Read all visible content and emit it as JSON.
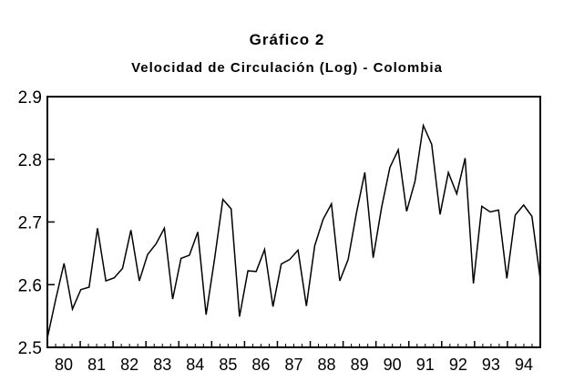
{
  "chart_data": {
    "type": "line",
    "title": "Gráfico 2",
    "subtitle": "Velocidad de Circulación (Log) - Colombia",
    "xlabel": "",
    "ylabel": "",
    "ylim": [
      2.5,
      2.9
    ],
    "yticks": [
      "2.5",
      "2.6",
      "2.7",
      "2.8",
      "2.9"
    ],
    "xticks": [
      "80",
      "81",
      "82",
      "83",
      "84",
      "85",
      "86",
      "87",
      "88",
      "89",
      "90",
      "91",
      "92",
      "93",
      "94"
    ],
    "x_start": 1980.0,
    "x_end": 1995.0,
    "frequency": "quarterly",
    "grid": false,
    "legend": "none",
    "line_color": "#000000",
    "series": [
      {
        "name": "",
        "values": [
          2.515,
          2.577,
          2.634,
          2.561,
          2.592,
          2.596,
          2.69,
          2.606,
          2.611,
          2.626,
          2.687,
          2.606,
          2.648,
          2.665,
          2.69,
          2.577,
          2.642,
          2.647,
          2.684,
          2.552,
          2.64,
          2.736,
          2.721,
          2.549,
          2.622,
          2.621,
          2.656,
          2.565,
          2.633,
          2.64,
          2.655,
          2.566,
          2.662,
          2.704,
          2.729,
          2.606,
          2.64,
          2.715,
          2.779,
          2.643,
          2.723,
          2.787,
          2.815,
          2.717,
          2.765,
          2.854,
          2.824,
          2.712,
          2.779,
          2.745,
          2.802,
          2.602,
          2.725,
          2.716,
          2.719,
          2.61,
          2.711,
          2.727,
          2.709,
          2.609
        ]
      }
    ]
  }
}
